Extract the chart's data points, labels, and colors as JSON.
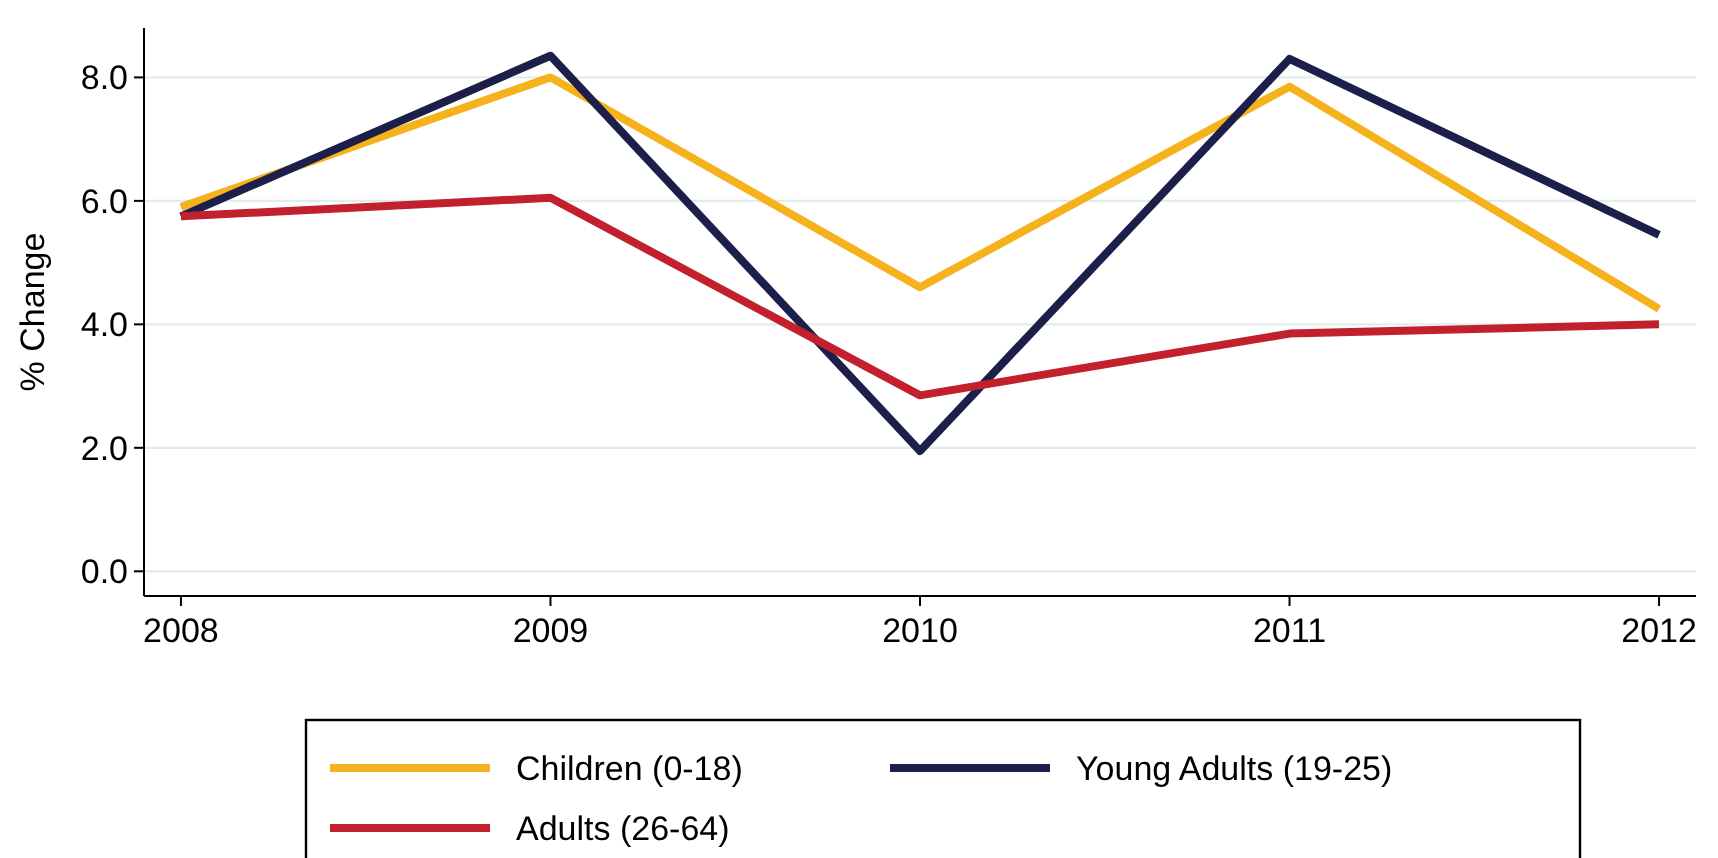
{
  "chart_data": {
    "type": "line",
    "ylabel": "% Change",
    "x": [
      2008,
      2009,
      2010,
      2011,
      2012
    ],
    "xlim": [
      2007.9,
      2012.1
    ],
    "xticks": [
      2008,
      2009,
      2010,
      2011,
      2012
    ],
    "ylim": [
      -0.4,
      8.8
    ],
    "yticks": [
      {
        "value": 0,
        "label": "0.0"
      },
      {
        "value": 2,
        "label": "2.0"
      },
      {
        "value": 4,
        "label": "4.0"
      },
      {
        "value": 6,
        "label": "6.0"
      },
      {
        "value": 8,
        "label": "8.0"
      }
    ],
    "grid": "y",
    "legend": "bottom",
    "marker": "none",
    "line_style": "solid",
    "series": [
      {
        "name": "Children (0-18)",
        "color": "#f5b21d",
        "values": [
          5.9,
          8.0,
          4.6,
          7.85,
          4.25
        ]
      },
      {
        "name": "Young Adults (19-25)",
        "color": "#1c1f4a",
        "values": [
          5.75,
          8.35,
          1.95,
          8.3,
          5.45
        ]
      },
      {
        "name": "Adults (26-64)",
        "color": "#c3202e",
        "values": [
          5.75,
          6.05,
          2.85,
          3.85,
          4.0
        ]
      }
    ]
  }
}
